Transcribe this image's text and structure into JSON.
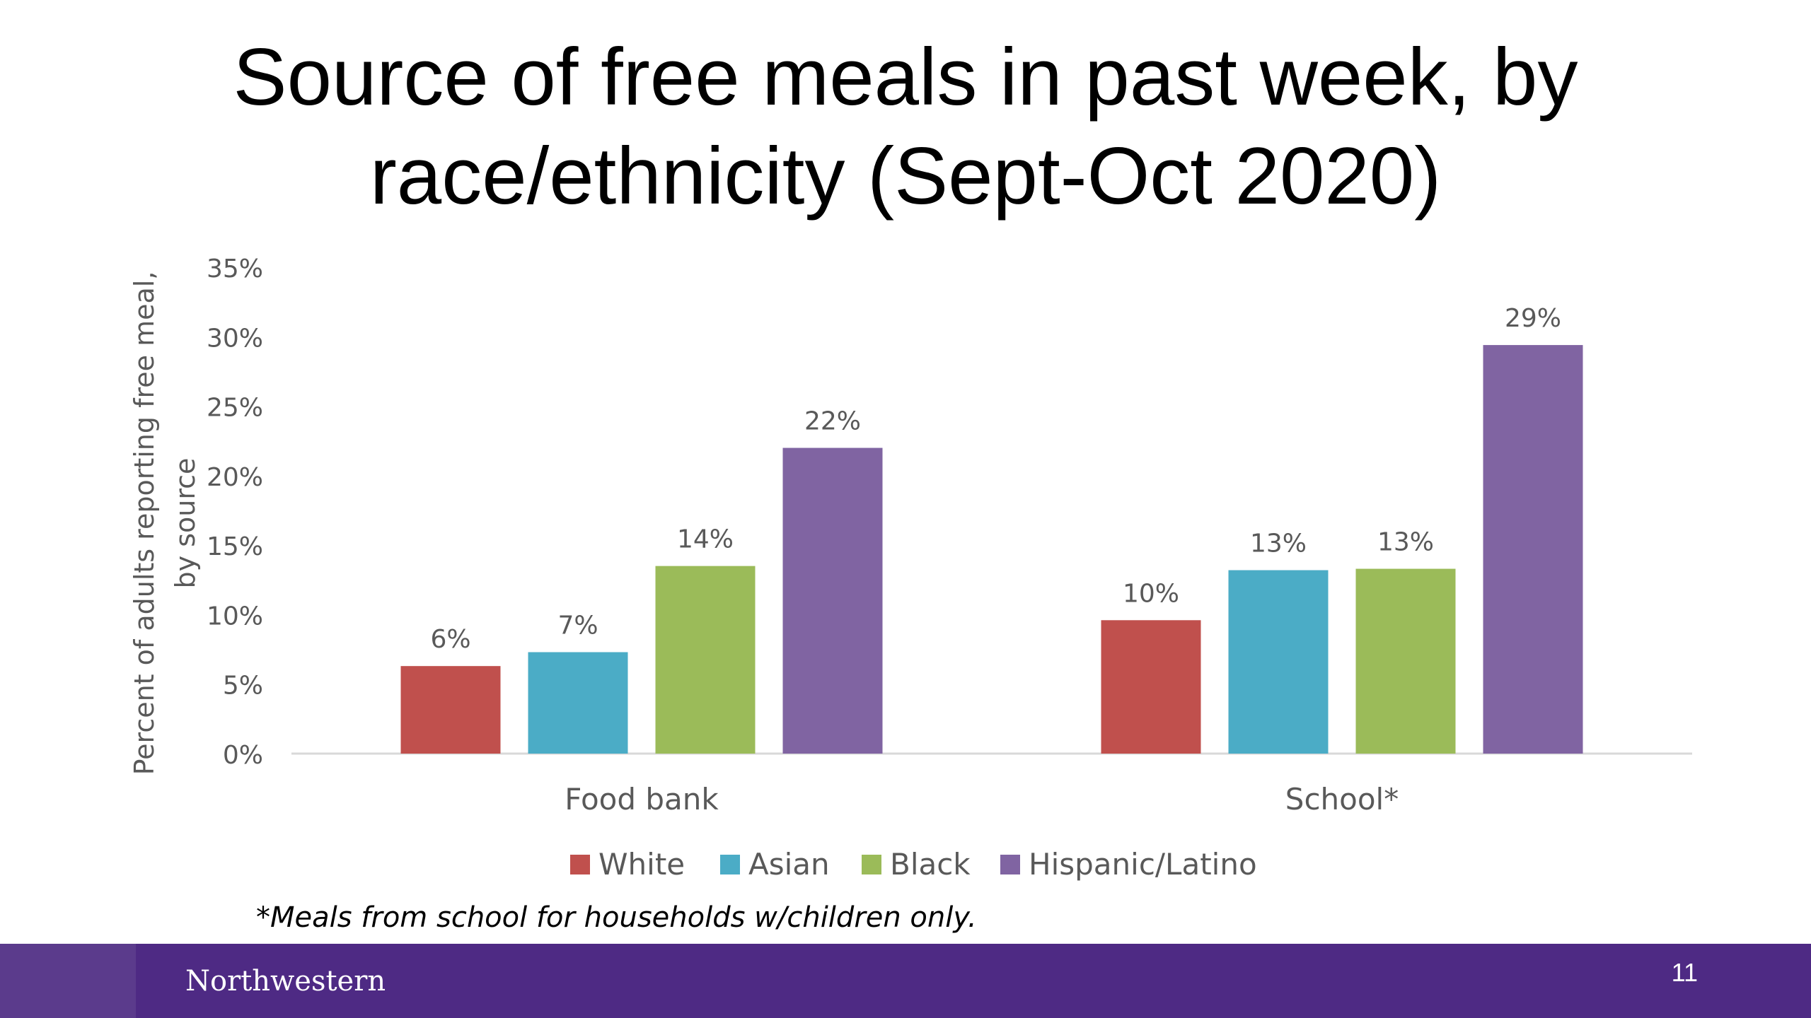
{
  "slide": {
    "title_line1": "Source of free meals in past week, by",
    "title_line2": "race/ethnicity (Sept-Oct 2020)",
    "footnote": "*Meals from school for households w/children only.",
    "footer_logo": "Northwestern",
    "page_number": "11"
  },
  "colors": {
    "White": "#c0504d",
    "Asian": "#4bacc6",
    "Black": "#9bbb59",
    "Hispanic/Latino": "#8064a2",
    "footer": "#4e2a84"
  },
  "chart_data": {
    "type": "bar",
    "title": "",
    "xlabel": "",
    "ylabel_line1": "Percent of adults reporting free meal,",
    "ylabel_line2": "by source",
    "categories": [
      "Food bank",
      "School*"
    ],
    "series": [
      {
        "name": "White",
        "values": [
          6.3,
          9.6
        ],
        "labels": [
          "6%",
          "10%"
        ]
      },
      {
        "name": "Asian",
        "values": [
          7.3,
          13.2
        ],
        "labels": [
          "7%",
          "13%"
        ]
      },
      {
        "name": "Black",
        "values": [
          13.5,
          13.3
        ],
        "labels": [
          "14%",
          "13%"
        ]
      },
      {
        "name": "Hispanic/Latino",
        "values": [
          22.0,
          29.4
        ],
        "labels": [
          "22%",
          "29%"
        ]
      }
    ],
    "ylim": [
      0,
      35
    ],
    "yticks": [
      {
        "value": 0,
        "label": "0%"
      },
      {
        "value": 5,
        "label": "5%"
      },
      {
        "value": 10,
        "label": "10%"
      },
      {
        "value": 15,
        "label": "15%"
      },
      {
        "value": 20,
        "label": "20%"
      },
      {
        "value": 25,
        "label": "25%"
      },
      {
        "value": 30,
        "label": "30%"
      },
      {
        "value": 35,
        "label": "35%"
      }
    ],
    "grid": false,
    "legend_position": "bottom"
  }
}
